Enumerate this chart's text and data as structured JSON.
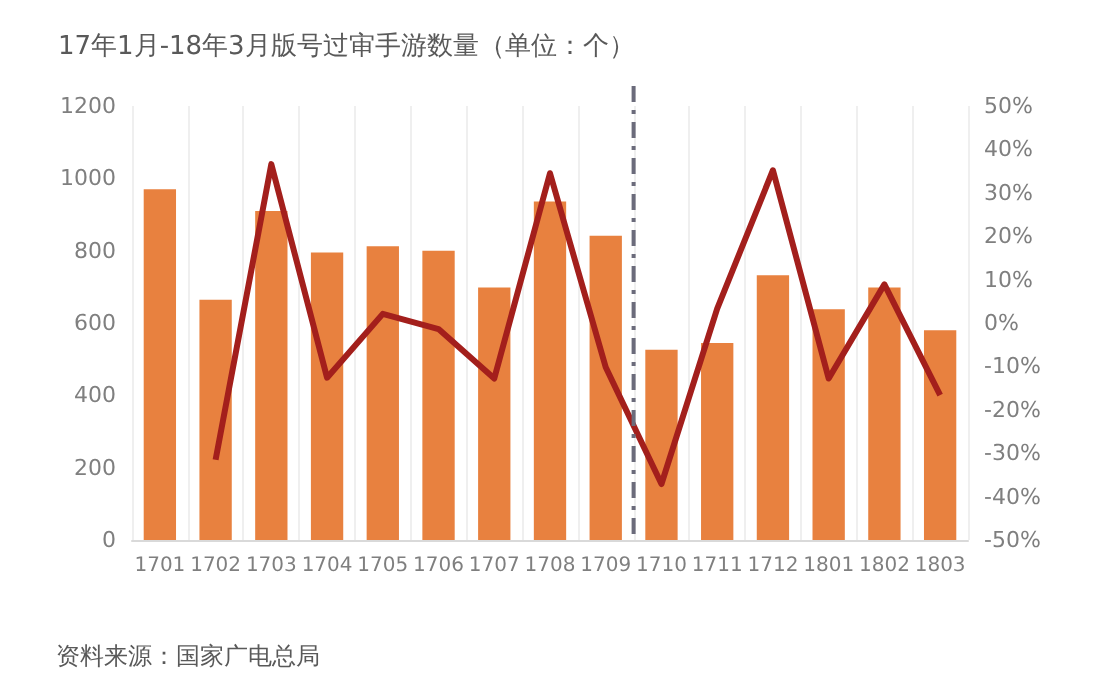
{
  "chart_data": {
    "type": "bar",
    "title": "17年1月-18年3月版号过审手游数量（单位：个）",
    "categories": [
      "1701",
      "1702",
      "1703",
      "1704",
      "1705",
      "1706",
      "1707",
      "1708",
      "1709",
      "1710",
      "1711",
      "1712",
      "1801",
      "1802",
      "1803"
    ],
    "series": [
      {
        "color": "#e8813f",
        "values": [
          970,
          664,
          910,
          795,
          812,
          800,
          698,
          936,
          841,
          526,
          545,
          732,
          638,
          698,
          580
        ]
      },
      {
        "type": "line",
        "axis": "y2",
        "color": "#a31f1c",
        "values": [
          null,
          -31.5,
          36.6,
          -12.6,
          2.1,
          -1.4,
          -12.8,
          34.5,
          -10.2,
          -37.1,
          3.3,
          35.2,
          -12.8,
          8.9,
          -16.6
        ]
      }
    ],
    "ylim": [
      0,
      1200
    ],
    "yticks": [
      0,
      200,
      400,
      600,
      800,
      1000,
      1200
    ],
    "y2lim": [
      -50,
      50
    ],
    "y2ticks": [
      {
        "value": -50,
        "label": "-50%"
      },
      {
        "value": -40,
        "label": "-40%"
      },
      {
        "value": -30,
        "label": "-30%"
      },
      {
        "value": -20,
        "label": "-20%"
      },
      {
        "value": -10,
        "label": "-10%"
      },
      {
        "value": 0,
        "label": "0%"
      },
      {
        "value": 10,
        "label": "10%"
      },
      {
        "value": 20,
        "label": "20%"
      },
      {
        "value": 30,
        "label": "30%"
      },
      {
        "value": 40,
        "label": "40%"
      },
      {
        "value": 50,
        "label": "50%"
      }
    ],
    "ref_lines": [
      {
        "axis": "x",
        "value": "1710",
        "color": "#6b6b7b",
        "line_style": "dashed"
      }
    ],
    "grid": "x",
    "marker": "none",
    "line_style": "solid",
    "annotations": [
      "资料来源：国家广电总局"
    ]
  }
}
